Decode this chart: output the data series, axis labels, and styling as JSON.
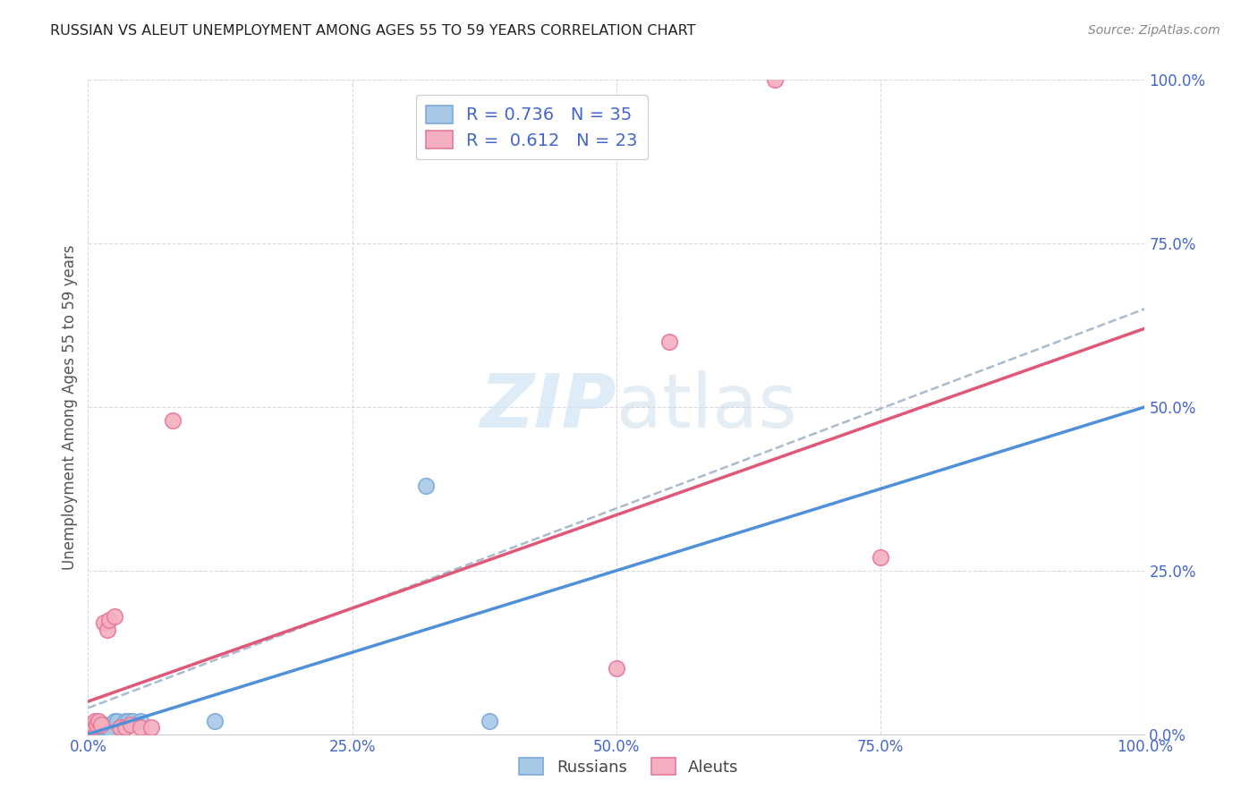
{
  "title": "RUSSIAN VS ALEUT UNEMPLOYMENT AMONG AGES 55 TO 59 YEARS CORRELATION CHART",
  "source": "Source: ZipAtlas.com",
  "ylabel": "Unemployment Among Ages 55 to 59 years",
  "xlim": [
    0,
    1.0
  ],
  "ylim": [
    0,
    1.0
  ],
  "xticks": [
    0.0,
    0.25,
    0.5,
    0.75,
    1.0
  ],
  "yticks": [
    0.0,
    0.25,
    0.5,
    0.75,
    1.0
  ],
  "xticklabels": [
    "0.0%",
    "25.0%",
    "50.0%",
    "75.0%",
    "100.0%"
  ],
  "yticklabels": [
    "0.0%",
    "25.0%",
    "50.0%",
    "75.0%",
    "100.0%"
  ],
  "russian_color": "#a8c8e8",
  "aleut_color": "#f4b0c0",
  "russian_edge": "#7aaad8",
  "aleut_edge": "#e87898",
  "russian_line_color": "#5090d8",
  "aleut_line_color": "#e05878",
  "dashed_line_color": "#aabbcc",
  "tick_color": "#4466cc",
  "label_color": "#555555",
  "background_color": "#ffffff",
  "grid_color": "#d8d8e8",
  "watermark_color": "#d0e4f4",
  "R_russian": 0.736,
  "N_russian": 35,
  "R_aleut": 0.612,
  "N_aleut": 23,
  "russians_x": [
    0.001,
    0.001,
    0.002,
    0.002,
    0.003,
    0.003,
    0.004,
    0.004,
    0.005,
    0.005,
    0.006,
    0.007,
    0.008,
    0.009,
    0.01,
    0.011,
    0.012,
    0.013,
    0.014,
    0.015,
    0.016,
    0.018,
    0.02,
    0.022,
    0.025,
    0.028,
    0.03,
    0.032,
    0.035,
    0.038,
    0.042,
    0.05,
    0.12,
    0.32,
    0.38
  ],
  "russians_y": [
    0.005,
    0.01,
    0.005,
    0.01,
    0.005,
    0.01,
    0.005,
    0.008,
    0.005,
    0.01,
    0.01,
    0.008,
    0.01,
    0.015,
    0.01,
    0.01,
    0.008,
    0.01,
    0.01,
    0.015,
    0.01,
    0.01,
    0.01,
    0.005,
    0.02,
    0.02,
    0.01,
    0.01,
    0.02,
    0.02,
    0.02,
    0.02,
    0.02,
    0.38,
    0.02
  ],
  "aleuts_x": [
    0.001,
    0.002,
    0.003,
    0.004,
    0.005,
    0.006,
    0.008,
    0.01,
    0.012,
    0.015,
    0.018,
    0.02,
    0.025,
    0.03,
    0.035,
    0.04,
    0.05,
    0.06,
    0.08,
    0.5,
    0.55,
    0.75,
    0.65
  ],
  "aleuts_y": [
    0.005,
    0.01,
    0.01,
    0.015,
    0.015,
    0.02,
    0.015,
    0.02,
    0.015,
    0.17,
    0.16,
    0.175,
    0.18,
    0.01,
    0.01,
    0.015,
    0.01,
    0.01,
    0.48,
    0.1,
    0.6,
    0.27,
    1.0
  ],
  "russian_line_x0": 0.0,
  "russian_line_y0": 0.0,
  "russian_line_x1": 1.0,
  "russian_line_y1": 0.5,
  "aleut_line_x0": 0.0,
  "aleut_line_y0": 0.05,
  "aleut_line_x1": 1.0,
  "aleut_line_y1": 0.62,
  "dashed_line_x0": 0.0,
  "dashed_line_y0": 0.04,
  "dashed_line_x1": 1.0,
  "dashed_line_y1": 0.65
}
